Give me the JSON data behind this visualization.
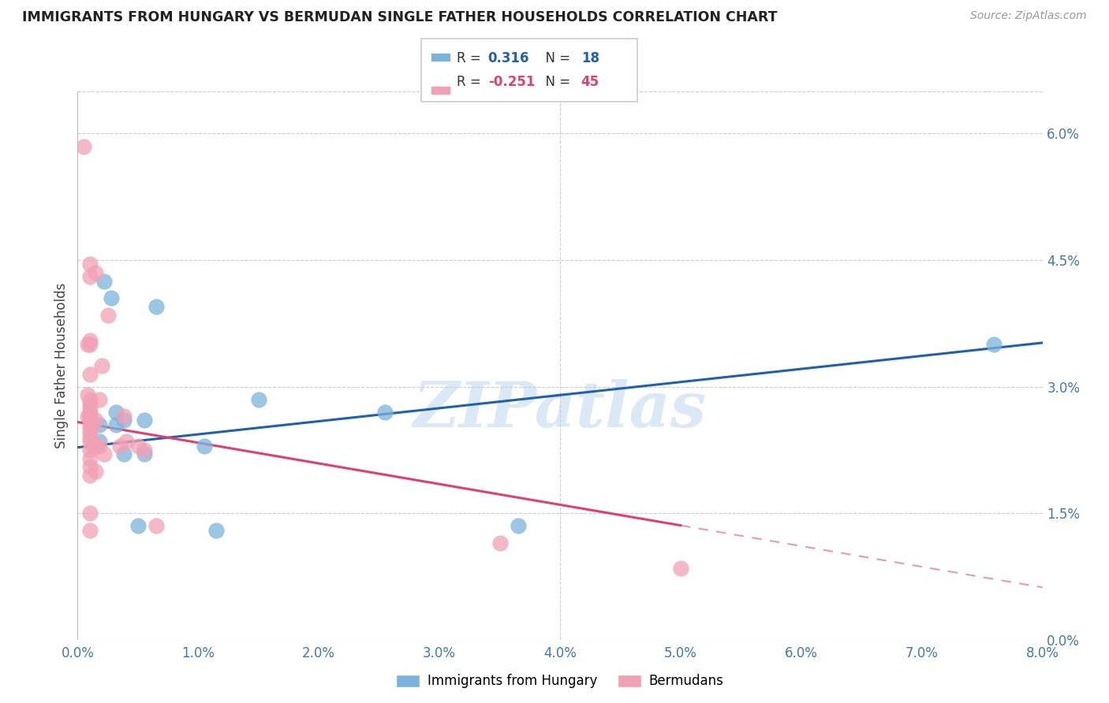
{
  "title": "IMMIGRANTS FROM HUNGARY VS BERMUDAN SINGLE FATHER HOUSEHOLDS CORRELATION CHART",
  "source": "Source: ZipAtlas.com",
  "ylabel": "Single Father Households",
  "right_ytick_labels": [
    "0.0%",
    "1.5%",
    "3.0%",
    "4.5%",
    "6.0%"
  ],
  "right_ytick_vals": [
    0.0,
    1.5,
    3.0,
    4.5,
    6.0
  ],
  "legend_r1": "R = ",
  "legend_rv1": "0.316",
  "legend_n1": "  N = ",
  "legend_nv1": "18",
  "legend_r2": "R = ",
  "legend_rv2": "-0.251",
  "legend_n2": "  N = ",
  "legend_nv2": "45",
  "blue_label": "Immigrants from Hungary",
  "pink_label": "Bermudans",
  "blue_color": "#7ab4dc",
  "pink_color": "#f2a0b5",
  "blue_line_color": "#2060b0",
  "pink_line_color": "#e04070",
  "watermark": "ZIPatlas",
  "blue_points_x": [
    0.18,
    0.18,
    0.22,
    0.28,
    0.32,
    0.32,
    0.38,
    0.38,
    0.5,
    0.55,
    0.55,
    0.65,
    1.05,
    1.15,
    1.5,
    2.55,
    3.65,
    7.6
  ],
  "blue_points_y": [
    2.55,
    2.35,
    4.25,
    4.05,
    2.7,
    2.55,
    2.6,
    2.2,
    1.35,
    2.6,
    2.2,
    3.95,
    2.3,
    1.3,
    2.85,
    2.7,
    1.35,
    3.5
  ],
  "pink_points_x": [
    0.05,
    0.08,
    0.08,
    0.08,
    0.1,
    0.1,
    0.1,
    0.1,
    0.1,
    0.1,
    0.1,
    0.1,
    0.1,
    0.1,
    0.1,
    0.1,
    0.1,
    0.1,
    0.1,
    0.1,
    0.1,
    0.1,
    0.1,
    0.1,
    0.1,
    0.12,
    0.12,
    0.15,
    0.15,
    0.15,
    0.15,
    0.18,
    0.18,
    0.2,
    0.22,
    0.25,
    0.35,
    0.38,
    0.4,
    0.5,
    0.55,
    0.65,
    3.5,
    5.0,
    0.1
  ],
  "pink_points_y": [
    5.85,
    3.5,
    2.9,
    2.65,
    4.45,
    4.3,
    3.55,
    3.15,
    2.85,
    2.8,
    2.75,
    2.7,
    2.65,
    2.6,
    2.55,
    2.5,
    2.45,
    2.4,
    2.35,
    2.25,
    2.15,
    2.05,
    1.95,
    1.5,
    1.3,
    2.55,
    2.3,
    4.35,
    2.6,
    2.3,
    2.0,
    2.85,
    2.3,
    3.25,
    2.2,
    3.85,
    2.3,
    2.65,
    2.35,
    2.3,
    2.25,
    1.35,
    1.15,
    0.85,
    3.5
  ],
  "xlim": [
    0.0,
    8.0
  ],
  "ylim": [
    0.0,
    6.5
  ],
  "xpct_ticks": [
    0.0,
    1.0,
    2.0,
    3.0,
    4.0,
    5.0,
    6.0,
    7.0,
    8.0
  ],
  "blue_trend": [
    2.28,
    0.155
  ],
  "pink_trend_solid_end": 5.0,
  "pink_trend": [
    2.58,
    -0.245
  ]
}
